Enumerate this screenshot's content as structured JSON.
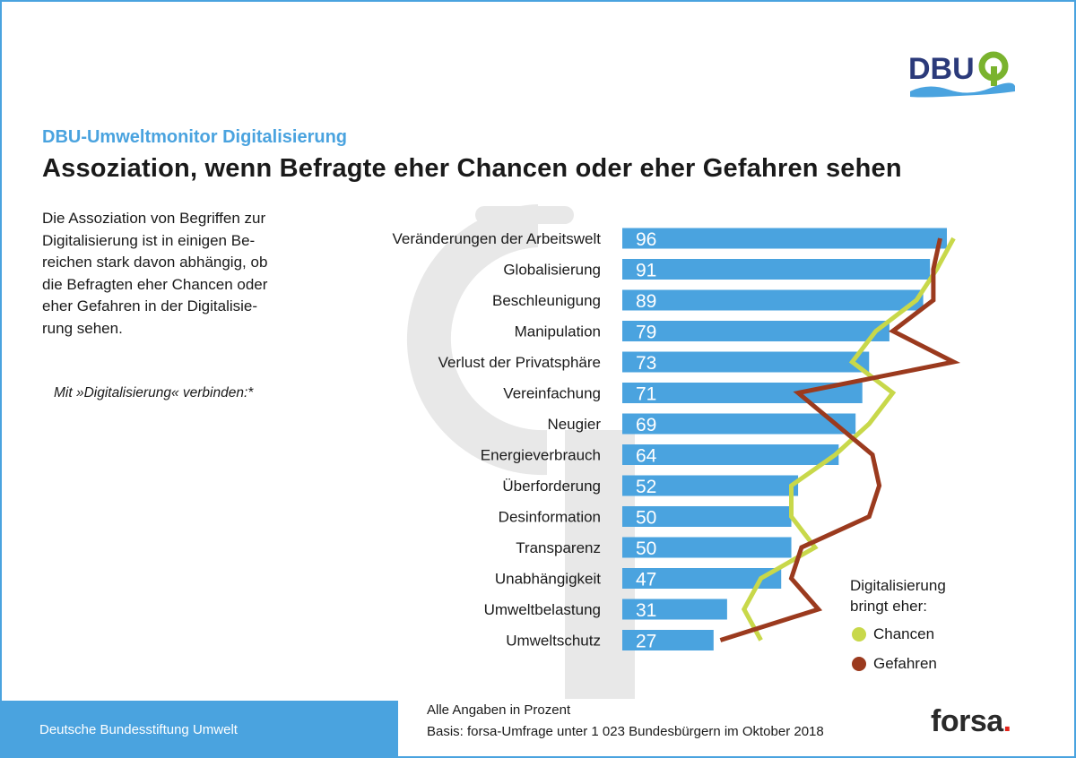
{
  "logo": {
    "text": "DBU"
  },
  "header": {
    "kicker": "DBU-Umweltmonitor Digitalisierung",
    "title": "Assoziation, wenn Befragte eher Chancen oder eher Gefahren sehen"
  },
  "intro": {
    "lines": [
      "Die Assoziation von Begriffen zur",
      "Digitalisierung ist in einigen Be-",
      "reichen stark davon abhängig, ob",
      "die Befragten eher Chancen oder",
      "eher Gefahren in der Digitalisie-",
      "rung sehen."
    ],
    "prompt": "Mit »Digitalisierung« verbinden:*"
  },
  "chart_data": {
    "type": "bar",
    "orientation": "horizontal",
    "title": "Assoziation, wenn Befragte eher Chancen oder eher Gefahren sehen",
    "unit": "Prozent",
    "xlim": [
      0,
      100
    ],
    "categories": [
      "Veränderungen der Arbeitswelt",
      "Globalisierung",
      "Beschleunigung",
      "Manipulation",
      "Verlust der Privatsphäre",
      "Vereinfachung",
      "Neugier",
      "Energieverbrauch",
      "Überforderung",
      "Desinformation",
      "Transparenz",
      "Unabhängigkeit",
      "Umweltbelastung",
      "Umweltschutz"
    ],
    "values": [
      96,
      91,
      89,
      79,
      73,
      71,
      69,
      64,
      52,
      50,
      50,
      47,
      31,
      27
    ],
    "value_labels": [
      "96",
      "91",
      "89",
      "79",
      "73",
      "71",
      "69",
      "64",
      "52",
      "50",
      "50",
      "47",
      "31",
      "27"
    ],
    "series": [
      {
        "name": "Chancen",
        "color": "#c8d84a",
        "values": [
          98,
          93,
          87,
          75,
          68,
          80,
          73,
          63,
          50,
          50,
          57,
          41,
          36,
          41
        ]
      },
      {
        "name": "Gefahren",
        "color": "#9b3a1e",
        "values": [
          94,
          92,
          92,
          80,
          98,
          52,
          63,
          74,
          76,
          73,
          53,
          50,
          58,
          29
        ]
      }
    ],
    "bar_color": "#4aa3df"
  },
  "legend": {
    "title_lines": [
      "Digitalisierung",
      "bringt eher:"
    ],
    "items": [
      {
        "label": "Chancen",
        "color": "#c8d84a"
      },
      {
        "label": "Gefahren",
        "color": "#9b3a1e"
      }
    ]
  },
  "footer": {
    "organization": "Deutsche Bundesstiftung Umwelt",
    "note1": "Alle Angaben in Prozent",
    "note2": "Basis: forsa-Umfrage unter 1 023 Bundesbürgern im Oktober 2018",
    "brand": "forsa",
    "brand_dot": "."
  },
  "colors": {
    "accent": "#4aa3df",
    "dark_text": "#1a1a1a"
  }
}
